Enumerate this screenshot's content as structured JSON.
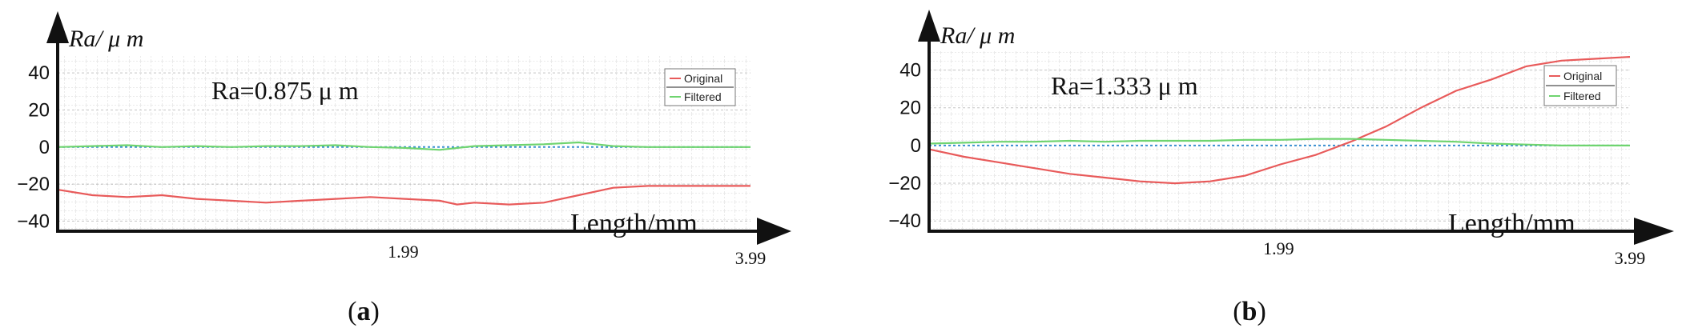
{
  "figure": {
    "panels": [
      {
        "caption": "a",
        "ylabel": "Ra/ μ m",
        "xlabel": "Length/mm",
        "annotation": "Ra=0.875 μ m",
        "yticks": [
          "40",
          "20",
          "0",
          "−20",
          "−40"
        ],
        "xticks": [
          "1.99",
          "3.99"
        ],
        "legend": [
          "Original",
          "Filtered"
        ]
      },
      {
        "caption": "b",
        "ylabel": "Ra/ μ m",
        "xlabel": "Length/mm",
        "annotation": "Ra=1.333 μ m",
        "yticks": [
          "40",
          "20",
          "0",
          "−20",
          "−40"
        ],
        "xticks": [
          "1.99",
          "3.99"
        ],
        "legend": [
          "Original",
          "Filtered"
        ]
      }
    ]
  },
  "chart_data": [
    {
      "type": "line",
      "ylabel": "Ra/ μ m",
      "xlabel": "Length/mm",
      "xlim": [
        0,
        3.99
      ],
      "ylim": [
        -45,
        50
      ],
      "yticks": [
        40,
        20,
        0,
        -20,
        -40
      ],
      "xticks": [
        1.99,
        3.99
      ],
      "grid": true,
      "legend_position": "top-right",
      "annotation": "Ra=0.875 μ m",
      "colors": {
        "Original": "#e85a5a",
        "Filtered": "#6fd46f",
        "zero_line": "#3a8fd0"
      },
      "series": [
        {
          "name": "Original",
          "x": [
            0,
            0.2,
            0.4,
            0.6,
            0.8,
            1.0,
            1.2,
            1.4,
            1.6,
            1.8,
            2.0,
            2.2,
            2.3,
            2.4,
            2.6,
            2.8,
            3.0,
            3.2,
            3.4,
            3.6,
            3.8,
            3.99
          ],
          "y": [
            -23,
            -26,
            -27,
            -26,
            -28,
            -29,
            -30,
            -29,
            -28,
            -27,
            -28,
            -29,
            -31,
            -30,
            -31,
            -30,
            -26,
            -22,
            -21,
            -21,
            -21,
            -21
          ]
        },
        {
          "name": "Filtered",
          "x": [
            0,
            0.2,
            0.4,
            0.6,
            0.8,
            1.0,
            1.2,
            1.4,
            1.6,
            1.8,
            2.0,
            2.2,
            2.4,
            2.6,
            2.8,
            3.0,
            3.2,
            3.4,
            3.6,
            3.8,
            3.99
          ],
          "y": [
            0,
            0.5,
            1,
            0,
            0.5,
            0,
            0.5,
            0.5,
            1,
            0,
            -0.5,
            -1.5,
            0.5,
            1,
            1.5,
            2.5,
            0.5,
            0,
            0,
            0,
            0
          ]
        }
      ]
    },
    {
      "type": "line",
      "ylabel": "Ra/ μ m",
      "xlabel": "Length/mm",
      "xlim": [
        0,
        3.99
      ],
      "ylim": [
        -45,
        50
      ],
      "yticks": [
        40,
        20,
        0,
        -20,
        -40
      ],
      "xticks": [
        1.99,
        3.99
      ],
      "grid": true,
      "legend_position": "top-right",
      "annotation": "Ra=1.333 μ m",
      "colors": {
        "Original": "#e85a5a",
        "Filtered": "#6fd46f",
        "zero_line": "#3a8fd0"
      },
      "series": [
        {
          "name": "Original",
          "x": [
            0,
            0.2,
            0.4,
            0.6,
            0.8,
            1.0,
            1.2,
            1.4,
            1.6,
            1.8,
            2.0,
            2.2,
            2.4,
            2.6,
            2.8,
            3.0,
            3.2,
            3.4,
            3.6,
            3.8,
            3.99
          ],
          "y": [
            -2,
            -6,
            -9,
            -12,
            -15,
            -17,
            -19,
            -20,
            -19,
            -16,
            -10,
            -5,
            2,
            10,
            20,
            29,
            35,
            42,
            45,
            46,
            47
          ]
        },
        {
          "name": "Filtered",
          "x": [
            0,
            0.2,
            0.4,
            0.6,
            0.8,
            1.0,
            1.2,
            1.4,
            1.6,
            1.8,
            2.0,
            2.2,
            2.4,
            2.6,
            2.8,
            3.0,
            3.2,
            3.4,
            3.6,
            3.8,
            3.99
          ],
          "y": [
            1,
            1.5,
            2,
            2,
            2.5,
            2,
            2.5,
            2.5,
            2.5,
            3,
            3,
            3.5,
            3.5,
            3,
            2.5,
            2,
            1,
            0.5,
            0,
            0,
            0
          ]
        }
      ]
    }
  ]
}
